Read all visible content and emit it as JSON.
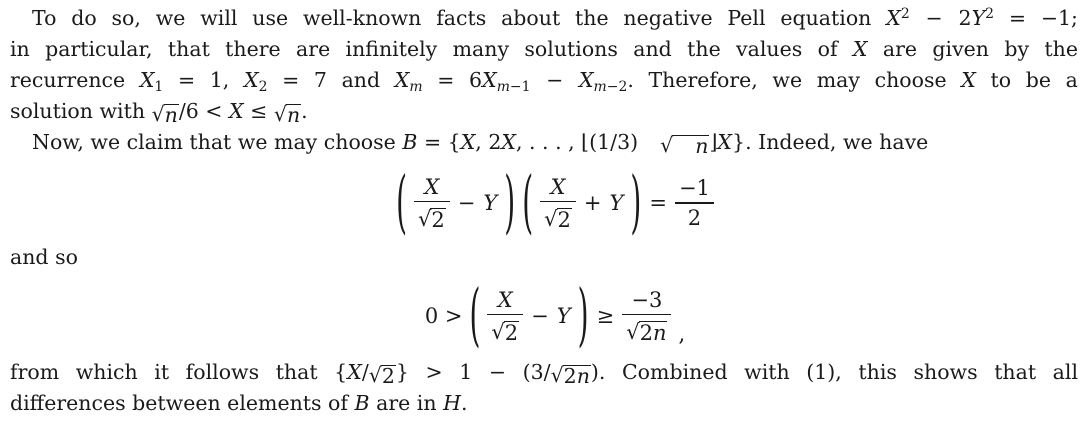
{
  "page": {
    "background": "#ffffff",
    "text_color": "#1a1a1a"
  },
  "p1": {
    "l1": {
      "t": "To do so, we will use well-known facts about the negative Pell equation",
      "x1": "X",
      "s1": "2",
      "minus": "−",
      "c": "2",
      "y": "Y",
      "s2": "2",
      "end": "= −1;"
    },
    "l2": {
      "a": "in particular, that there are infinitely many solutions and the values of",
      "x": "X",
      "b": "are given by the"
    },
    "l3": {
      "a": "recurrence",
      "x1": "X",
      "s1": "1",
      "b": "= 1,",
      "x2": "X",
      "s2": "2",
      "c": "= 7 and",
      "x3": "X",
      "s3": "m",
      "d": "= 6",
      "x4": "X",
      "s4": "m",
      "s4b": "−1",
      "e": "−",
      "x5": "X",
      "s5": "m",
      "s5b": "−2",
      "f": ". Therefore, we may choose",
      "x6": "X",
      "g": "to be a"
    },
    "l4": {
      "a": "solution with",
      "r1": "√",
      "n1": "n",
      "b": "/6 <",
      "x": "X",
      "le": "≤",
      "r2": "√",
      "n2": "n",
      "dot": "."
    }
  },
  "p2": {
    "a": "Now, we claim that we may choose",
    "bvar": "B",
    "b": "= {",
    "x1": "X",
    "c": ", 2",
    "x2": "X",
    "d": ", . . . , ⌊(1/3)",
    "r": "√",
    "n": "n",
    "e": "⌋",
    "x3": "X",
    "f": "}. Indeed, we have"
  },
  "eq1": {
    "lp1": "(",
    "num1": "X",
    "r1": "√",
    "den1": "2",
    "minus": "−",
    "y1": "Y",
    "rp1": ")",
    "lp2": "(",
    "num2": "X",
    "r2": "√",
    "den2": "2",
    "plus": "+",
    "y2": "Y",
    "rp2": ")",
    "eq": "=",
    "num3": "−1",
    "den3": "2"
  },
  "andso": "and so",
  "eq2": {
    "pre": "0 >",
    "lp": "(",
    "num1": "X",
    "r1": "√",
    "den1": "2",
    "minus": "−",
    "y": "Y",
    "rp": ")",
    "ge": "≥",
    "num2": "−3",
    "r2": "√",
    "den2a": "2",
    "den2b": "n",
    "tail": ","
  },
  "p3": {
    "l1": {
      "a": "from which it follows that {",
      "x": "X",
      "slash": "/",
      "r1": "√",
      "d1": "2",
      "b": "} > 1 − (3/",
      "r2": "√",
      "d2a": "2",
      "d2b": "n",
      "c": "). Combined with (1), this shows that all"
    },
    "l2": {
      "a": "differences between elements of",
      "bv": "B",
      "b": "are in",
      "hv": "H",
      "dot": "."
    }
  }
}
